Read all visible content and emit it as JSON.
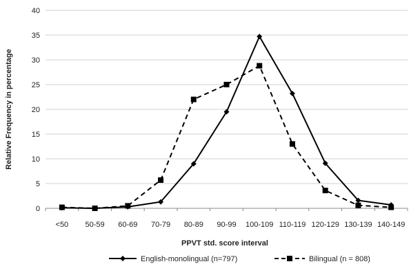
{
  "chart_data": {
    "type": "line",
    "categories": [
      "<50",
      "50-59",
      "60-69",
      "70-79",
      "80-89",
      "90-99",
      "100-109",
      "110-119",
      "120-129",
      "130-139",
      "140-149"
    ],
    "series": [
      {
        "name": "English-monolingual (n=797)",
        "values": [
          0.1,
          0.0,
          0.3,
          1.3,
          9.0,
          19.5,
          34.7,
          23.2,
          9.1,
          1.6,
          0.7
        ],
        "line_style": "solid",
        "marker": "diamond",
        "color": "#000000"
      },
      {
        "name": "Bilingual (n = 808)",
        "values": [
          0.2,
          0.0,
          0.5,
          5.7,
          22.0,
          25.0,
          28.8,
          13.0,
          3.6,
          0.6,
          0.2
        ],
        "line_style": "dashed",
        "marker": "square",
        "color": "#000000"
      }
    ],
    "xlabel": "PPVT std. score interval",
    "ylabel": "Relative Frequency in percentage",
    "ylim": [
      0,
      40
    ],
    "yticks": [
      "0",
      "5",
      "10",
      "15",
      "20",
      "25",
      "30",
      "35",
      "40"
    ],
    "grid": true,
    "legend_position": "bottom"
  }
}
